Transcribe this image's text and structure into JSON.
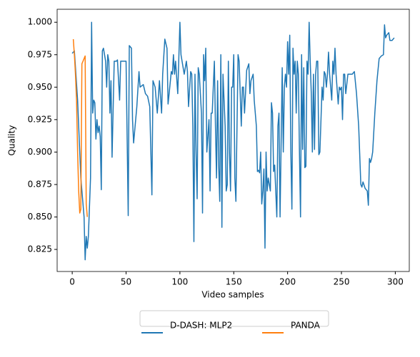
{
  "chart_data": {
    "type": "line",
    "xlabel": "Video samples",
    "ylabel": "Quality",
    "xlim": [
      -14,
      313
    ],
    "ylim": [
      0.808,
      1.01
    ],
    "xticks": [
      0,
      50,
      100,
      150,
      200,
      250,
      300
    ],
    "yticks": [
      {
        "value": 0.825,
        "label": "0.825"
      },
      {
        "value": 0.85,
        "label": "0.850"
      },
      {
        "value": 0.875,
        "label": "0.875"
      },
      {
        "value": 0.9,
        "label": "0.900"
      },
      {
        "value": 0.925,
        "label": "0.925"
      },
      {
        "value": 0.95,
        "label": "0.950"
      },
      {
        "value": 0.975,
        "label": "0.975"
      },
      {
        "value": 1.0,
        "label": "1.000"
      }
    ],
    "legend": "lower center",
    "series": [
      {
        "name": "D-DASH: MLP2",
        "color": "#1f77b4",
        "x": [
          0,
          2,
          5,
          8,
          11,
          12,
          13,
          14,
          15,
          17,
          18,
          19,
          20,
          21,
          22,
          23,
          24,
          25,
          26,
          27,
          28,
          29,
          31,
          32,
          33,
          34,
          35,
          36,
          37,
          39,
          41,
          42,
          44,
          45,
          47,
          48,
          50,
          52,
          53,
          55,
          56,
          57,
          60,
          62,
          63,
          66,
          68,
          70,
          72,
          74,
          75,
          77,
          79,
          81,
          83,
          84,
          86,
          88,
          89,
          90,
          92,
          93,
          94,
          95,
          96,
          98,
          100,
          101,
          103,
          104,
          106,
          107,
          108,
          110,
          111,
          112,
          113,
          114,
          115,
          116,
          117,
          118,
          120,
          121,
          122,
          123,
          124,
          125,
          127,
          128,
          129,
          130,
          132,
          133,
          134,
          135,
          136,
          137,
          138,
          139,
          140,
          142,
          143,
          144,
          145,
          146,
          147,
          148,
          149,
          150,
          151,
          152,
          154,
          155,
          157,
          158,
          159,
          160,
          162,
          164,
          165,
          166,
          168,
          169,
          171,
          172,
          173,
          174,
          175,
          176,
          177,
          178,
          179,
          180,
          181,
          182,
          184,
          185,
          186,
          187,
          188,
          190,
          191,
          192,
          193,
          195,
          196,
          197,
          198,
          199,
          200,
          201,
          202,
          203,
          204,
          205,
          206,
          207,
          208,
          209,
          210,
          211,
          212,
          213,
          214,
          215,
          216,
          217,
          218,
          219,
          220,
          221,
          222,
          223,
          224,
          225,
          226,
          227,
          228,
          229,
          230,
          232,
          233,
          234,
          235,
          236,
          237,
          238,
          239,
          240,
          241,
          242,
          243,
          244,
          245,
          247,
          248,
          249,
          250,
          251,
          252,
          253,
          254,
          256,
          258,
          260,
          262,
          264,
          266,
          268,
          269,
          270,
          272,
          274,
          275,
          276,
          277,
          278,
          279,
          281,
          283,
          285,
          287,
          289,
          290,
          291,
          292,
          294,
          295,
          297,
          299
        ],
        "values": [
          0.976,
          0.978,
          0.94,
          0.88,
          0.85,
          0.817,
          0.835,
          0.826,
          0.835,
          0.88,
          1.0,
          0.93,
          0.94,
          0.938,
          0.91,
          0.925,
          0.915,
          0.92,
          0.912,
          0.871,
          0.978,
          0.98,
          0.97,
          0.95,
          0.975,
          0.97,
          0.93,
          0.955,
          0.896,
          0.97,
          0.97,
          0.971,
          0.94,
          0.97,
          0.97,
          0.97,
          0.97,
          0.851,
          0.982,
          0.98,
          0.925,
          0.907,
          0.935,
          0.962,
          0.95,
          0.952,
          0.945,
          0.943,
          0.935,
          0.867,
          0.955,
          0.95,
          0.93,
          0.955,
          0.93,
          0.96,
          0.987,
          0.98,
          0.937,
          0.945,
          0.962,
          0.96,
          0.975,
          0.96,
          0.97,
          0.945,
          1.0,
          0.975,
          0.965,
          0.96,
          0.97,
          0.962,
          0.935,
          0.962,
          0.96,
          0.92,
          0.831,
          0.96,
          0.9,
          0.864,
          0.965,
          0.96,
          0.93,
          0.853,
          0.975,
          0.955,
          0.98,
          0.9,
          0.925,
          0.87,
          0.93,
          0.93,
          0.97,
          0.92,
          0.88,
          0.955,
          0.89,
          0.862,
          0.975,
          0.842,
          0.96,
          0.92,
          0.87,
          0.875,
          0.97,
          0.9,
          0.87,
          0.95,
          0.95,
          0.975,
          0.88,
          0.862,
          0.975,
          0.97,
          0.92,
          0.95,
          0.95,
          0.93,
          0.963,
          0.968,
          0.945,
          0.955,
          0.96,
          0.94,
          0.92,
          0.885,
          0.886,
          0.884,
          0.9,
          0.86,
          0.87,
          0.887,
          0.826,
          0.9,
          0.87,
          0.88,
          0.87,
          0.938,
          0.93,
          0.885,
          0.89,
          0.85,
          0.92,
          0.93,
          0.85,
          0.965,
          0.9,
          0.95,
          0.96,
          0.95,
          0.985,
          0.96,
          0.99,
          0.9,
          0.856,
          0.98,
          0.96,
          0.97,
          0.93,
          0.97,
          0.96,
          0.9,
          0.85,
          0.975,
          0.902,
          0.965,
          0.888,
          0.889,
          0.97,
          0.96,
          1.0,
          0.97,
          0.945,
          0.9,
          0.96,
          0.902,
          0.96,
          0.97,
          0.97,
          0.898,
          0.9,
          0.95,
          0.94,
          0.962,
          0.96,
          0.95,
          0.96,
          0.977,
          0.96,
          0.95,
          0.94,
          0.97,
          0.96,
          0.98,
          0.96,
          0.937,
          0.95,
          0.948,
          0.95,
          0.925,
          0.96,
          0.96,
          0.945,
          0.96,
          0.96,
          0.96,
          0.962,
          0.945,
          0.92,
          0.875,
          0.873,
          0.877,
          0.872,
          0.87,
          0.859,
          0.895,
          0.892,
          0.895,
          0.9,
          0.93,
          0.955,
          0.972,
          0.974,
          0.975,
          0.998,
          0.988,
          0.99,
          0.992,
          0.986,
          0.986,
          0.988
        ]
      },
      {
        "name": "PANDA",
        "color": "#ff7f0e",
        "x": [
          1,
          2,
          3,
          4,
          5,
          6,
          7,
          8,
          9,
          10,
          11,
          12,
          13,
          14
        ],
        "values": [
          0.987,
          0.975,
          0.96,
          0.94,
          0.9,
          0.87,
          0.853,
          0.856,
          0.968,
          0.97,
          0.972,
          0.974,
          0.86,
          0.85
        ]
      }
    ]
  }
}
